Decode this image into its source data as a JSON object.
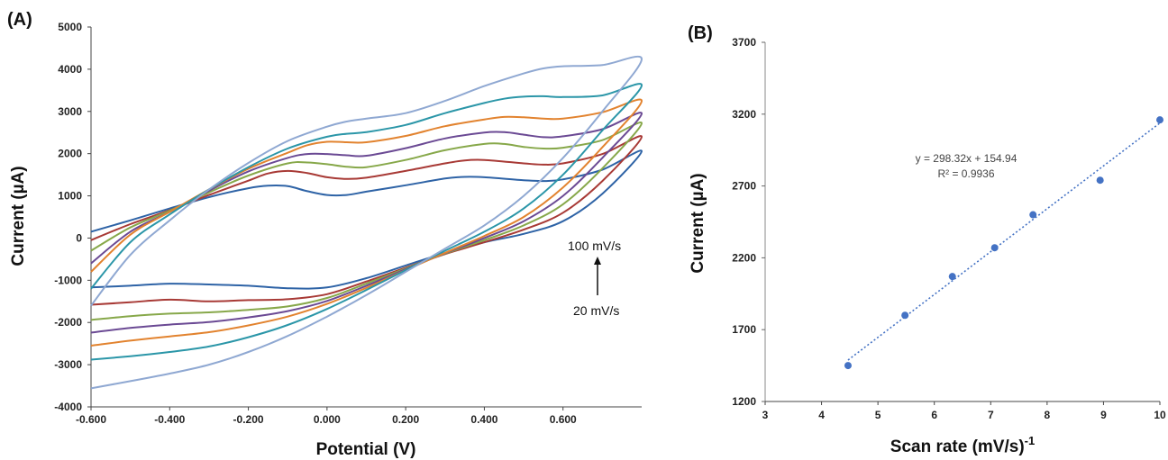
{
  "chart_data": [
    {
      "panel_label": "(A)",
      "type": "line",
      "xlabel": "Potential (V)",
      "ylabel": "Current (µA)",
      "xlim": [
        -0.6,
        0.8
      ],
      "ylim": [
        -4000,
        5000
      ],
      "x_ticks": [
        "-0.600",
        "-0.400",
        "-0.200",
        "0.000",
        "0.200",
        "0.400",
        "0.600"
      ],
      "y_ticks": [
        "-4000",
        "-3000",
        "-2000",
        "-1000",
        "0",
        "1000",
        "2000",
        "3000",
        "4000",
        "5000"
      ],
      "annotation_top": "100 mV/s",
      "annotation_bottom": "20 mV/s",
      "series": [
        {
          "color": "#2e63a6",
          "anodic": [
            [
              -0.6,
              150
            ],
            [
              -0.5,
              420
            ],
            [
              -0.4,
              700
            ],
            [
              -0.3,
              970
            ],
            [
              -0.2,
              1180
            ],
            [
              -0.15,
              1240
            ],
            [
              -0.1,
              1230
            ],
            [
              -0.05,
              1110
            ],
            [
              0.0,
              1020
            ],
            [
              0.05,
              1020
            ],
            [
              0.1,
              1100
            ],
            [
              0.2,
              1250
            ],
            [
              0.3,
              1410
            ],
            [
              0.35,
              1450
            ],
            [
              0.4,
              1440
            ],
            [
              0.5,
              1370
            ],
            [
              0.55,
              1350
            ],
            [
              0.6,
              1390
            ],
            [
              0.7,
              1620
            ],
            [
              0.8,
              2060
            ]
          ],
          "cathodic": [
            [
              0.8,
              2060
            ],
            [
              0.7,
              1050
            ],
            [
              0.6,
              400
            ],
            [
              0.5,
              100
            ],
            [
              0.4,
              -100
            ],
            [
              0.3,
              -350
            ],
            [
              0.2,
              -650
            ],
            [
              0.1,
              -950
            ],
            [
              0.0,
              -1170
            ],
            [
              -0.1,
              -1190
            ],
            [
              -0.2,
              -1130
            ],
            [
              -0.3,
              -1100
            ],
            [
              -0.4,
              -1080
            ],
            [
              -0.5,
              -1130
            ],
            [
              -0.6,
              -1170
            ]
          ]
        },
        {
          "color": "#a83a36",
          "anodic": [
            [
              -0.6,
              -50
            ],
            [
              -0.5,
              330
            ],
            [
              -0.4,
              660
            ],
            [
              -0.3,
              1020
            ],
            [
              -0.2,
              1360
            ],
            [
              -0.15,
              1530
            ],
            [
              -0.1,
              1590
            ],
            [
              -0.05,
              1540
            ],
            [
              0.0,
              1440
            ],
            [
              0.05,
              1400
            ],
            [
              0.1,
              1430
            ],
            [
              0.2,
              1590
            ],
            [
              0.3,
              1770
            ],
            [
              0.35,
              1840
            ],
            [
              0.4,
              1850
            ],
            [
              0.5,
              1770
            ],
            [
              0.55,
              1740
            ],
            [
              0.6,
              1770
            ],
            [
              0.7,
              1990
            ],
            [
              0.8,
              2400
            ]
          ],
          "cathodic": [
            [
              0.8,
              2400
            ],
            [
              0.7,
              1350
            ],
            [
              0.6,
              600
            ],
            [
              0.5,
              200
            ],
            [
              0.4,
              -100
            ],
            [
              0.3,
              -380
            ],
            [
              0.2,
              -700
            ],
            [
              0.1,
              -1030
            ],
            [
              0.0,
              -1330
            ],
            [
              -0.1,
              -1450
            ],
            [
              -0.2,
              -1470
            ],
            [
              -0.3,
              -1500
            ],
            [
              -0.4,
              -1460
            ],
            [
              -0.5,
              -1520
            ],
            [
              -0.6,
              -1580
            ]
          ]
        },
        {
          "color": "#87a84a",
          "anodic": [
            [
              -0.6,
              -300
            ],
            [
              -0.5,
              250
            ],
            [
              -0.4,
              650
            ],
            [
              -0.3,
              1080
            ],
            [
              -0.2,
              1480
            ],
            [
              -0.1,
              1770
            ],
            [
              -0.05,
              1790
            ],
            [
              0.0,
              1750
            ],
            [
              0.05,
              1690
            ],
            [
              0.1,
              1680
            ],
            [
              0.2,
              1850
            ],
            [
              0.3,
              2080
            ],
            [
              0.4,
              2230
            ],
            [
              0.45,
              2230
            ],
            [
              0.5,
              2160
            ],
            [
              0.55,
              2120
            ],
            [
              0.6,
              2140
            ],
            [
              0.7,
              2320
            ],
            [
              0.8,
              2720
            ]
          ],
          "cathodic": [
            [
              0.8,
              2720
            ],
            [
              0.7,
              1650
            ],
            [
              0.6,
              800
            ],
            [
              0.5,
              300
            ],
            [
              0.4,
              -50
            ],
            [
              0.3,
              -370
            ],
            [
              0.2,
              -720
            ],
            [
              0.1,
              -1080
            ],
            [
              0.0,
              -1420
            ],
            [
              -0.1,
              -1620
            ],
            [
              -0.2,
              -1700
            ],
            [
              -0.3,
              -1760
            ],
            [
              -0.4,
              -1790
            ],
            [
              -0.5,
              -1850
            ],
            [
              -0.6,
              -1940
            ]
          ]
        },
        {
          "color": "#6b4a94",
          "anodic": [
            [
              -0.6,
              -600
            ],
            [
              -0.5,
              150
            ],
            [
              -0.4,
              620
            ],
            [
              -0.3,
              1120
            ],
            [
              -0.2,
              1580
            ],
            [
              -0.1,
              1900
            ],
            [
              -0.05,
              1990
            ],
            [
              0.0,
              1990
            ],
            [
              0.05,
              1960
            ],
            [
              0.1,
              1950
            ],
            [
              0.2,
              2130
            ],
            [
              0.3,
              2360
            ],
            [
              0.4,
              2500
            ],
            [
              0.45,
              2510
            ],
            [
              0.5,
              2450
            ],
            [
              0.55,
              2390
            ],
            [
              0.6,
              2410
            ],
            [
              0.7,
              2580
            ],
            [
              0.8,
              2950
            ]
          ],
          "cathodic": [
            [
              0.8,
              2950
            ],
            [
              0.7,
              1900
            ],
            [
              0.6,
              1000
            ],
            [
              0.5,
              400
            ],
            [
              0.4,
              0
            ],
            [
              0.3,
              -360
            ],
            [
              0.2,
              -740
            ],
            [
              0.1,
              -1130
            ],
            [
              0.0,
              -1490
            ],
            [
              -0.1,
              -1730
            ],
            [
              -0.2,
              -1880
            ],
            [
              -0.3,
              -1990
            ],
            [
              -0.4,
              -2050
            ],
            [
              -0.5,
              -2130
            ],
            [
              -0.6,
              -2240
            ]
          ]
        },
        {
          "color": "#e2832f",
          "anodic": [
            [
              -0.6,
              -800
            ],
            [
              -0.5,
              80
            ],
            [
              -0.4,
              620
            ],
            [
              -0.3,
              1150
            ],
            [
              -0.2,
              1640
            ],
            [
              -0.1,
              2020
            ],
            [
              -0.05,
              2200
            ],
            [
              0.0,
              2280
            ],
            [
              0.05,
              2270
            ],
            [
              0.1,
              2270
            ],
            [
              0.2,
              2420
            ],
            [
              0.3,
              2650
            ],
            [
              0.4,
              2810
            ],
            [
              0.45,
              2870
            ],
            [
              0.5,
              2860
            ],
            [
              0.55,
              2830
            ],
            [
              0.6,
              2830
            ],
            [
              0.7,
              2980
            ],
            [
              0.8,
              3250
            ]
          ],
          "cathodic": [
            [
              0.8,
              3250
            ],
            [
              0.7,
              2150
            ],
            [
              0.6,
              1200
            ],
            [
              0.5,
              500
            ],
            [
              0.4,
              50
            ],
            [
              0.3,
              -350
            ],
            [
              0.2,
              -760
            ],
            [
              0.1,
              -1180
            ],
            [
              0.0,
              -1560
            ],
            [
              -0.1,
              -1860
            ],
            [
              -0.2,
              -2070
            ],
            [
              -0.3,
              -2230
            ],
            [
              -0.4,
              -2330
            ],
            [
              -0.5,
              -2430
            ],
            [
              -0.6,
              -2550
            ]
          ]
        },
        {
          "color": "#2b96a8",
          "anodic": [
            [
              -0.6,
              -1200
            ],
            [
              -0.5,
              -100
            ],
            [
              -0.4,
              560
            ],
            [
              -0.3,
              1150
            ],
            [
              -0.2,
              1680
            ],
            [
              -0.1,
              2120
            ],
            [
              0.0,
              2400
            ],
            [
              0.05,
              2470
            ],
            [
              0.1,
              2510
            ],
            [
              0.2,
              2680
            ],
            [
              0.3,
              2960
            ],
            [
              0.4,
              3200
            ],
            [
              0.45,
              3300
            ],
            [
              0.5,
              3350
            ],
            [
              0.55,
              3360
            ],
            [
              0.6,
              3340
            ],
            [
              0.7,
              3380
            ],
            [
              0.8,
              3620
            ]
          ],
          "cathodic": [
            [
              0.8,
              3620
            ],
            [
              0.7,
              2550
            ],
            [
              0.6,
              1500
            ],
            [
              0.5,
              700
            ],
            [
              0.4,
              150
            ],
            [
              0.3,
              -300
            ],
            [
              0.2,
              -760
            ],
            [
              0.1,
              -1230
            ],
            [
              0.0,
              -1680
            ],
            [
              -0.1,
              -2060
            ],
            [
              -0.2,
              -2350
            ],
            [
              -0.3,
              -2570
            ],
            [
              -0.4,
              -2700
            ],
            [
              -0.5,
              -2800
            ],
            [
              -0.6,
              -2880
            ]
          ]
        },
        {
          "color": "#8fa8d2",
          "anodic": [
            [
              -0.6,
              -1600
            ],
            [
              -0.5,
              -400
            ],
            [
              -0.4,
              420
            ],
            [
              -0.3,
              1150
            ],
            [
              -0.2,
              1780
            ],
            [
              -0.1,
              2300
            ],
            [
              0.0,
              2640
            ],
            [
              0.05,
              2760
            ],
            [
              0.1,
              2830
            ],
            [
              0.2,
              2960
            ],
            [
              0.3,
              3250
            ],
            [
              0.4,
              3600
            ],
            [
              0.5,
              3900
            ],
            [
              0.55,
              4020
            ],
            [
              0.6,
              4070
            ],
            [
              0.7,
              4100
            ],
            [
              0.8,
              4240
            ]
          ],
          "cathodic": [
            [
              0.8,
              4240
            ],
            [
              0.7,
              3000
            ],
            [
              0.6,
              1900
            ],
            [
              0.5,
              1000
            ],
            [
              0.4,
              300
            ],
            [
              0.3,
              -250
            ],
            [
              0.2,
              -800
            ],
            [
              0.1,
              -1350
            ],
            [
              0.0,
              -1860
            ],
            [
              -0.1,
              -2320
            ],
            [
              -0.2,
              -2700
            ],
            [
              -0.3,
              -3000
            ],
            [
              -0.4,
              -3210
            ],
            [
              -0.5,
              -3390
            ],
            [
              -0.6,
              -3560
            ]
          ]
        }
      ]
    },
    {
      "panel_label": "(B)",
      "type": "scatter",
      "xlabel": "Scan rate (mV/s)",
      "xlabel_sup": "-1",
      "ylabel": "Current (µA)",
      "xlim": [
        3,
        10
      ],
      "ylim": [
        1200,
        3700
      ],
      "x_ticks": [
        "3",
        "4",
        "5",
        "6",
        "7",
        "8",
        "9",
        "10"
      ],
      "y_ticks": [
        "1200",
        "1700",
        "2200",
        "2700",
        "3200",
        "3700"
      ],
      "x": [
        4.47,
        5.48,
        6.32,
        7.07,
        7.75,
        8.94,
        10.0
      ],
      "y": [
        1450,
        1800,
        2070,
        2270,
        2500,
        2740,
        3160
      ],
      "trendline": {
        "slope": 298.32,
        "intercept": 154.94,
        "x_range": [
          4.47,
          10.0
        ]
      },
      "equation": "y = 298.32x + 154.94",
      "r_squared": "R² = 0.9936",
      "marker_color": "#4472c4"
    }
  ]
}
